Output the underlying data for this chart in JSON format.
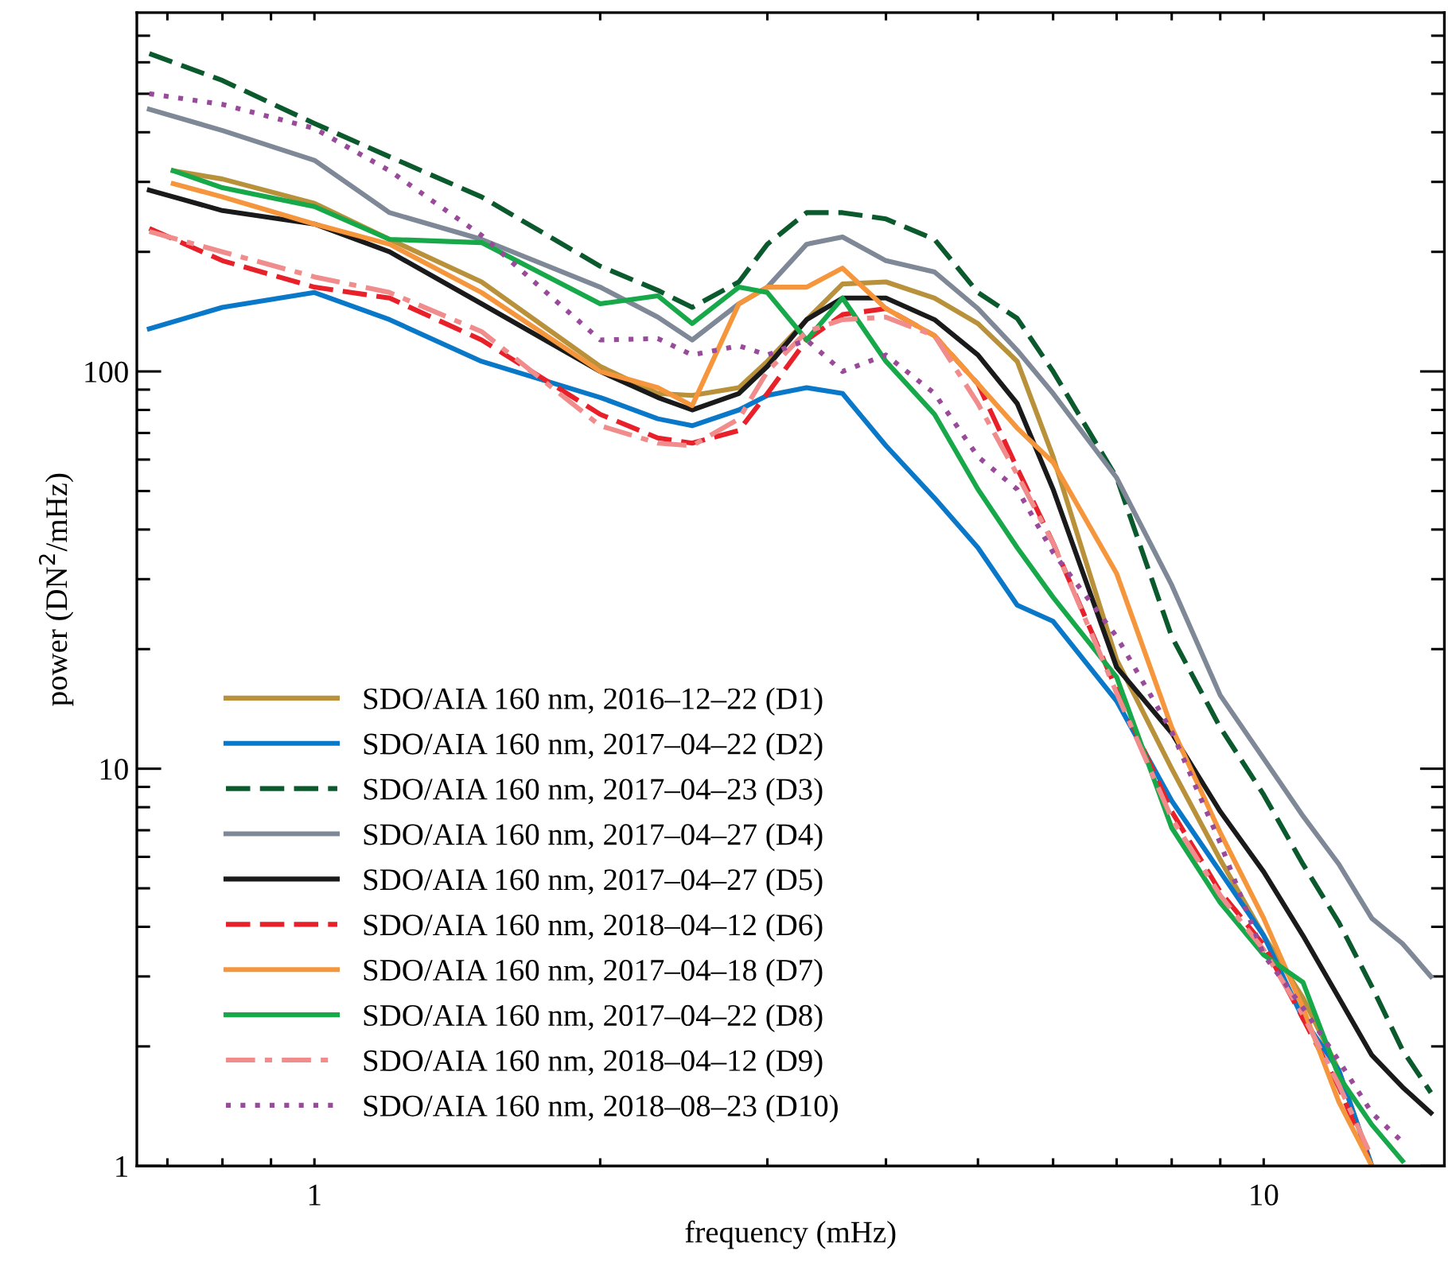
{
  "chart_data": {
    "type": "line",
    "xlabel": "frequency (mHz)",
    "ylabel": "power (DN$^{2}$/mHz)",
    "log": "xy",
    "xlim": [
      0.65,
      15.5
    ],
    "ylim": [
      1,
      800
    ],
    "xticks": [
      {
        "value": 0.7,
        "label": null
      },
      {
        "value": 0.8,
        "label": null
      },
      {
        "value": 0.9,
        "label": null
      },
      1,
      {
        "value": 2,
        "label": null
      },
      {
        "value": 3,
        "label": null
      },
      {
        "value": 4,
        "label": null
      },
      {
        "value": 5,
        "label": null
      },
      {
        "value": 6,
        "label": null
      },
      {
        "value": 7,
        "label": null
      },
      {
        "value": 8,
        "label": null
      },
      {
        "value": 9,
        "label": null
      },
      10
    ],
    "yticks": [
      1,
      {
        "value": 2,
        "label": null
      },
      {
        "value": 3,
        "label": null
      },
      {
        "value": 4,
        "label": null
      },
      {
        "value": 5,
        "label": null
      },
      {
        "value": 6,
        "label": null
      },
      {
        "value": 7,
        "label": null
      },
      {
        "value": 8,
        "label": null
      },
      {
        "value": 9,
        "label": null
      },
      10,
      {
        "value": 20,
        "label": null
      },
      {
        "value": 30,
        "label": null
      },
      {
        "value": 40,
        "label": null
      },
      {
        "value": 50,
        "label": null
      },
      {
        "value": 60,
        "label": null
      },
      {
        "value": 70,
        "label": null
      },
      {
        "value": 80,
        "label": null
      },
      {
        "value": 90,
        "label": null
      },
      100,
      {
        "value": 200,
        "label": null
      },
      {
        "value": 300,
        "label": null
      },
      {
        "value": 400,
        "label": null
      },
      {
        "value": 500,
        "label": null
      },
      {
        "value": 600,
        "label": null
      },
      {
        "value": 700,
        "label": null
      }
    ],
    "grid": false,
    "legend": "bottom left",
    "marker": "none",
    "x": [
      0.67,
      0.8,
      1,
      1.2,
      1.5,
      2,
      2.3,
      2.5,
      2.8,
      3,
      3.3,
      3.6,
      4,
      4.5,
      5,
      5.5,
      6,
      7,
      8,
      9,
      10,
      11,
      12,
      13,
      14,
      15
    ],
    "series": [
      {
        "name": "SDO/AIA 160 nm, 2016–12–22 (D1)",
        "color": "#b8913a",
        "line_style": "solid",
        "x": [
          0.71,
          0.8,
          1,
          1.2,
          1.5,
          2,
          2.3,
          2.5,
          2.8,
          3,
          3.3,
          3.6,
          4,
          4.5,
          5,
          5.5,
          6,
          7,
          8,
          9,
          10,
          11,
          12,
          13
        ],
        "values": [
          320,
          305,
          265,
          215,
          168,
          103,
          88,
          87,
          91,
          106,
          135,
          166,
          168,
          153,
          132,
          106,
          61,
          18.8,
          10,
          5.9,
          3.8,
          2.65,
          1.74,
          1.0
        ]
      },
      {
        "name": "SDO/AIA 160 nm, 2017–04–22 (D2)",
        "color": "#0a78c8",
        "line_style": "solid",
        "values": [
          128,
          145,
          158,
          135,
          106,
          86,
          76,
          73,
          80,
          87,
          91,
          88,
          65,
          48,
          36,
          25.8,
          23.5,
          14.8,
          8.3,
          5.5,
          3.8,
          2.35,
          1.74,
          1.0,
          null,
          null
        ]
      },
      {
        "name": "SDO/AIA 160 nm, 2017–04–23 (D3)",
        "color": "#0b5a2e",
        "line_style": "dashed",
        "values": [
          631,
          540,
          421,
          347,
          275,
          184,
          160,
          145,
          168,
          209,
          251,
          251,
          242,
          215,
          158,
          136,
          100,
          54,
          21.5,
          12.7,
          8.6,
          5.75,
          4.1,
          2.83,
          1.96,
          1.53
        ]
      },
      {
        "name": "SDO/AIA 160 nm, 2017–04–27 (D4)",
        "color": "#7f8896",
        "line_style": "solid",
        "values": [
          457,
          404,
          340,
          251,
          215,
          163,
          137,
          120,
          148,
          163,
          209,
          218,
          190,
          178,
          144,
          113,
          88,
          54,
          29,
          15.3,
          10.6,
          7.6,
          5.75,
          4.2,
          3.63,
          3.0
        ]
      },
      {
        "name": "SDO/AIA 160 nm, 2017–04–27 (D5)",
        "color": "#1a1a1a",
        "line_style": "solid",
        "values": [
          286,
          254,
          235,
          200,
          148,
          100,
          86,
          80,
          88,
          103,
          135,
          153,
          153,
          135,
          110,
          83,
          50.5,
          18,
          12.3,
          7.8,
          5.5,
          3.8,
          2.65,
          1.9,
          1.58,
          1.36
        ]
      },
      {
        "name": "SDO/AIA 160 nm, 2018–04–12 (D6)",
        "color": "#e8202a",
        "line_style": "dashed",
        "values": [
          229,
          190,
          163,
          153,
          120,
          78,
          68,
          66,
          71,
          88,
          120,
          139,
          144,
          123,
          93,
          57,
          37,
          15.8,
          7.8,
          4.9,
          3.6,
          2.35,
          1.58,
          1.0,
          null,
          null
        ]
      },
      {
        "name": "SDO/AIA 160 nm, 2017–04–18 (D7)",
        "color": "#f5963c",
        "line_style": "solid",
        "x": [
          0.71,
          0.8,
          1,
          1.2,
          1.5,
          2,
          2.3,
          2.5,
          2.8,
          3,
          3.3,
          3.6,
          4,
          4.5,
          5,
          5.5,
          6,
          7,
          8,
          9,
          10,
          11,
          12,
          13
        ],
        "values": [
          297,
          275,
          235,
          209,
          158,
          100,
          91,
          82,
          148,
          163,
          163,
          182,
          144,
          123,
          93,
          72,
          59,
          31,
          12.7,
          6.9,
          4.2,
          2.5,
          1.45,
          1.0
        ]
      },
      {
        "name": "SDO/AIA 160 nm, 2017–04–22 (D8)",
        "color": "#17a84a",
        "line_style": "solid",
        "x": [
          0.71,
          0.8,
          1,
          1.2,
          1.5,
          2,
          2.3,
          2.5,
          2.8,
          3,
          3.3,
          3.6,
          4,
          4.5,
          5,
          5.5,
          6,
          7,
          8,
          9,
          10,
          11,
          12,
          13,
          14
        ],
        "values": [
          320,
          290,
          260,
          215,
          211,
          148,
          155,
          132,
          163,
          158,
          120,
          153,
          106,
          78,
          50.5,
          36,
          27,
          17,
          7.1,
          4.6,
          3.4,
          2.9,
          1.68,
          1.27,
          1.03
        ]
      },
      {
        "name": "SDO/AIA 160 nm, 2018–04–12 (D9)",
        "color": "#f08c8c",
        "line_style": "dashdot",
        "values": [
          225,
          200,
          173,
          158,
          126,
          73,
          66,
          65,
          76,
          100,
          126,
          135,
          137,
          123,
          83,
          55,
          37,
          15.5,
          7.5,
          4.8,
          3.5,
          2.4,
          1.6,
          1.05,
          null,
          null
        ]
      },
      {
        "name": "SDO/AIA 160 nm, 2018–08–23 (D10)",
        "color": "#9a4a9a",
        "line_style": "dotted",
        "values": [
          500,
          470,
          409,
          320,
          220,
          120,
          121,
          110,
          116,
          110,
          120,
          100,
          110,
          88,
          61,
          50.5,
          35,
          21.5,
          12.4,
          6.5,
          3.4,
          2.5,
          1.84,
          1.36,
          1.15,
          null
        ]
      }
    ]
  }
}
